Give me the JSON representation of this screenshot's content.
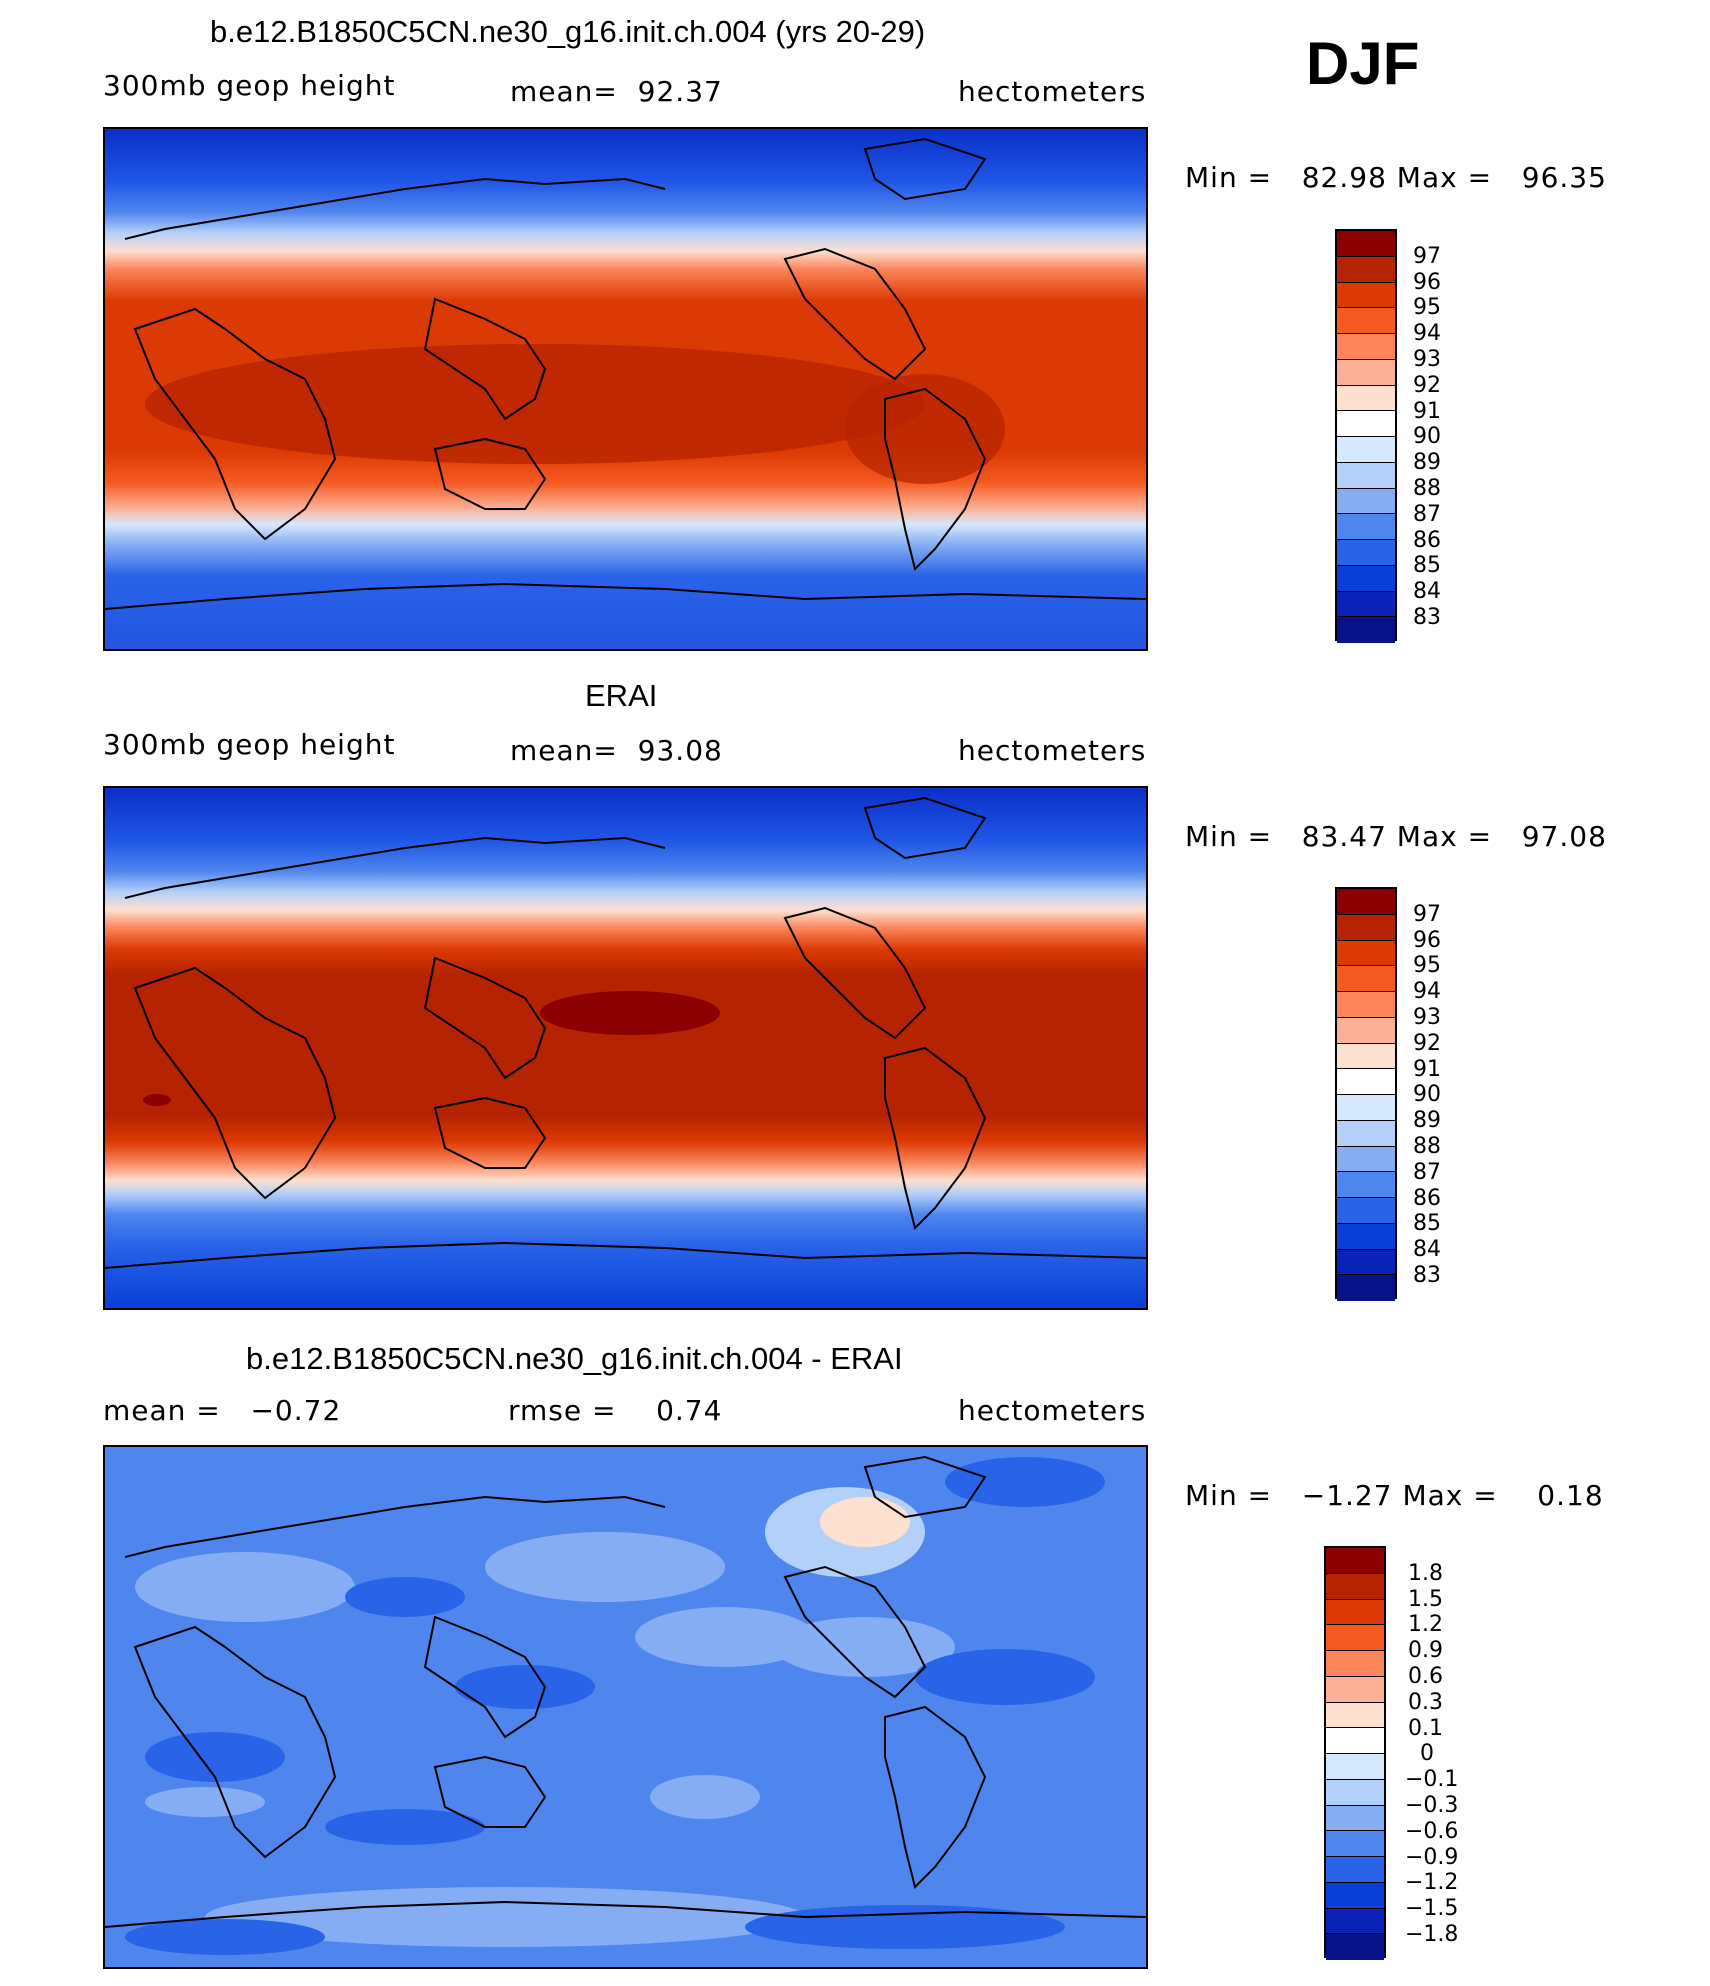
{
  "season": "DJF",
  "panels": [
    {
      "title": "b.e12.B1850C5CN.ne30_g16.init.ch.004 (yrs 20-29)",
      "left_label": "300mb geop height",
      "center_label": "mean=  92.37",
      "right_label": "hectometers",
      "minmax": "Min =   82.98 Max =   96.35",
      "colorbar_ticks": [
        "97",
        "96",
        "95",
        "94",
        "93",
        "92",
        "91",
        "90",
        "89",
        "88",
        "87",
        "86",
        "85",
        "84",
        "83"
      ]
    },
    {
      "title": "ERAI",
      "left_label": "300mb geop height",
      "center_label": "mean=  93.08",
      "right_label": "hectometers",
      "minmax": "Min =   83.47 Max =   97.08",
      "colorbar_ticks": [
        "97",
        "96",
        "95",
        "94",
        "93",
        "92",
        "91",
        "90",
        "89",
        "88",
        "87",
        "86",
        "85",
        "84",
        "83"
      ]
    },
    {
      "title": "b.e12.B1850C5CN.ne30_g16.init.ch.004 - ERAI",
      "left_label": "mean =   −0.72",
      "center_label": "rmse =    0.74",
      "right_label": "hectometers",
      "minmax": "Min =   −1.27 Max =    0.18",
      "colorbar_ticks": [
        "1.8",
        "1.5",
        "1.2",
        "0.9",
        "0.6",
        "0.3",
        "0.1",
        "0",
        "−0.1",
        "−0.3",
        "−0.6",
        "−0.9",
        "−1.2",
        "−1.5",
        "−1.8"
      ]
    }
  ],
  "colors": {
    "scale": [
      "#8a0000",
      "#b52300",
      "#dc3a05",
      "#f55a22",
      "#fb8459",
      "#fcb196",
      "#fde0d0",
      "#ffffff",
      "#d6e8fb",
      "#b3d0f8",
      "#85adf4",
      "#4f86ee",
      "#2863e8",
      "#0a3fd8",
      "#0a22b8",
      "#061288"
    ]
  }
}
